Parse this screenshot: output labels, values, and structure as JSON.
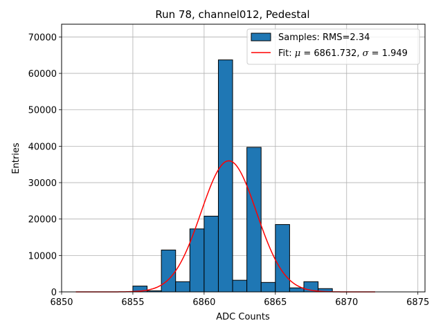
{
  "chart_data": {
    "type": "bar",
    "title": "Run 78, channel012, Pedestal",
    "xlabel": "ADC Counts",
    "ylabel": "Entries",
    "xlim": [
      6850,
      6875.5
    ],
    "ylim": [
      0,
      73500
    ],
    "xticks": [
      6850,
      6855,
      6860,
      6865,
      6870,
      6875
    ],
    "yticks": [
      0,
      10000,
      20000,
      30000,
      40000,
      50000,
      60000,
      70000
    ],
    "grid": true,
    "legend_position": "top-right",
    "colors": {
      "bars": "#1f77b4",
      "bar_edge": "#000000",
      "fit": "#ff0000",
      "grid": "#b0b0b0"
    },
    "histogram": {
      "name": "Samples: RMS=2.34",
      "bin_edges": [
        6855,
        6856,
        6857,
        6858,
        6859,
        6860,
        6861,
        6862,
        6863,
        6864,
        6865,
        6866,
        6867,
        6868,
        6869
      ],
      "counts": [
        1600,
        300,
        11500,
        2800,
        17300,
        20800,
        63700,
        3200,
        39700,
        2600,
        18500,
        1100,
        2800,
        900
      ]
    },
    "fit": {
      "label_prefix": "Fit: ",
      "mu_symbol": "μ",
      "mu_text": " = 6861.732, ",
      "sigma_symbol": "σ",
      "sigma_text": " = 1.949",
      "mu": 6861.732,
      "sigma": 1.949,
      "amplitude": 36000,
      "x_range": [
        6851,
        6872
      ]
    }
  }
}
